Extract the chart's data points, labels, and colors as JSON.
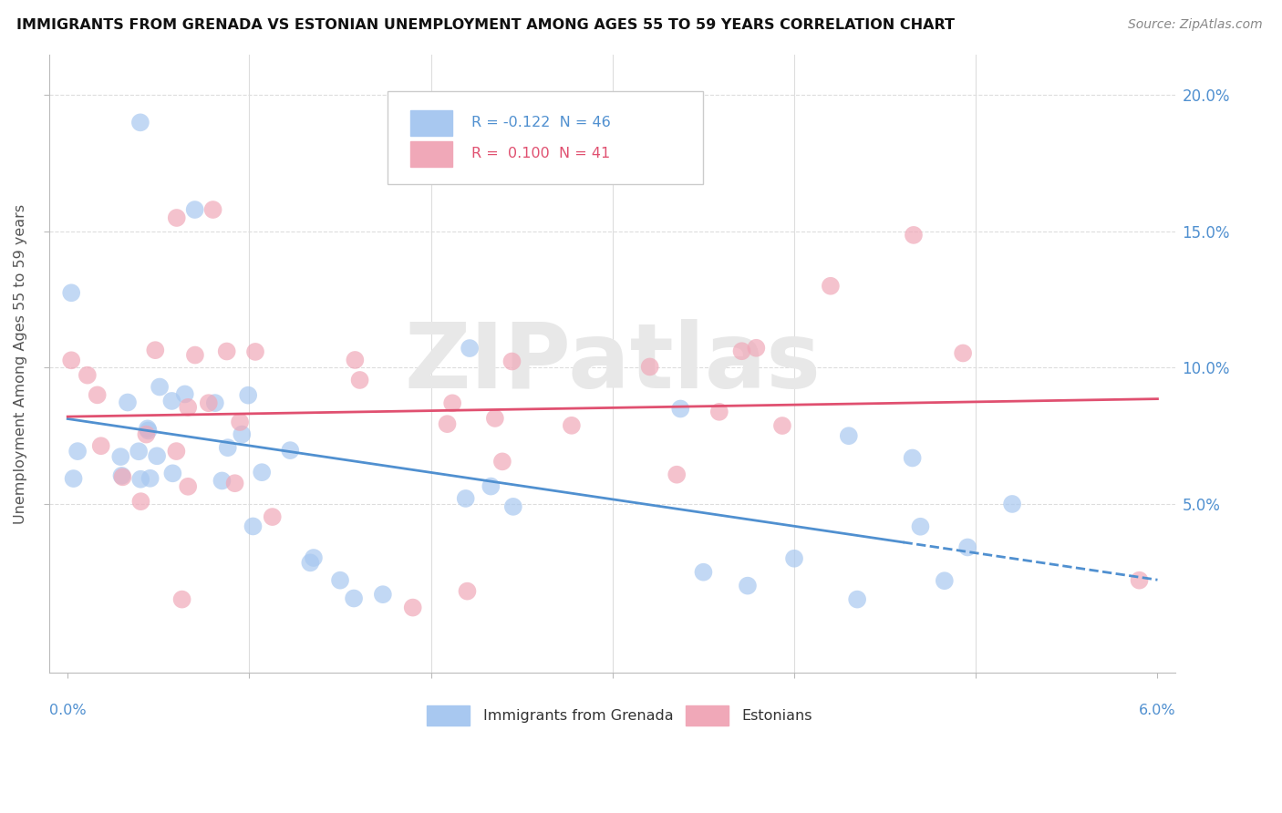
{
  "title": "IMMIGRANTS FROM GRENADA VS ESTONIAN UNEMPLOYMENT AMONG AGES 55 TO 59 YEARS CORRELATION CHART",
  "source": "Source: ZipAtlas.com",
  "ylabel": "Unemployment Among Ages 55 to 59 years",
  "legend1_text": "R = -0.122  N = 46",
  "legend2_text": "R =  0.100  N = 41",
  "blue_scatter_color": "#a8c8f0",
  "pink_scatter_color": "#f0a8b8",
  "blue_line_color": "#5090d0",
  "pink_line_color": "#e05070",
  "blue_N": 46,
  "pink_N": 41,
  "xlim_min": 0.0,
  "xlim_max": 0.06,
  "ylim_min": -0.012,
  "ylim_max": 0.215,
  "watermark": "ZIPatlas",
  "watermark_color": "#e8e8e8",
  "ytick_values": [
    0.05,
    0.1,
    0.15,
    0.2
  ],
  "ytick_labels": [
    "5.0%",
    "10.0%",
    "15.0%",
    "20.0%"
  ],
  "xaxis_left_label": "0.0%",
  "xaxis_right_label": "6.0%",
  "legend_label_blue": "Immigrants from Grenada",
  "legend_label_pink": "Estonians",
  "grid_color": "#dddddd",
  "background_color": "#ffffff"
}
